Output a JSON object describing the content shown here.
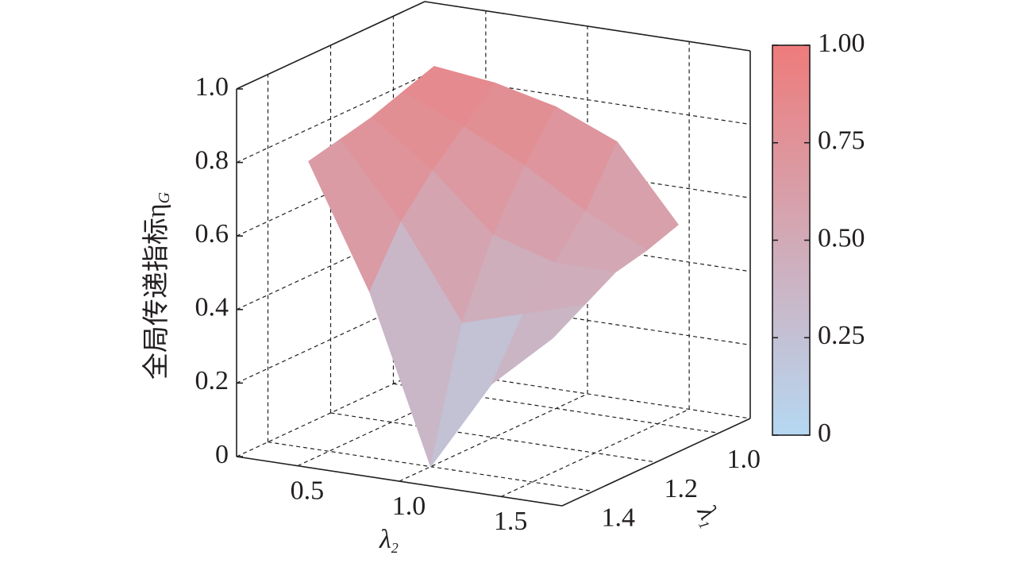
{
  "chart_data": {
    "type": "surface",
    "zlabel": {
      "text": "全局传递指标η",
      "sub": "G"
    },
    "xlabel": {
      "text": "λ",
      "sub": "2"
    },
    "ylabel": {
      "text": "λ",
      "sub": "1"
    },
    "x": [
      0.4,
      0.7,
      1.0,
      1.3,
      1.6
    ],
    "y": [
      1.0,
      1.1,
      1.2,
      1.3,
      1.4
    ],
    "z": [
      [
        0.88,
        0.86,
        0.82,
        0.75,
        0.55
      ],
      [
        0.85,
        0.78,
        0.7,
        0.6,
        0.52
      ],
      [
        0.82,
        0.7,
        0.55,
        0.5,
        0.5
      ],
      [
        0.8,
        0.6,
        0.35,
        0.4,
        0.45
      ],
      [
        0.78,
        0.45,
        0.0,
        0.25,
        0.4
      ]
    ],
    "xlim": [
      0.2,
      1.8
    ],
    "xticks": [
      0.5,
      {
        "value": 1,
        "label": "1.0"
      },
      1.5
    ],
    "ylim": [
      0.9,
      1.5
    ],
    "yticks": [
      {
        "value": 1,
        "label": "1.0"
      },
      1.2,
      1.4
    ],
    "zlim": [
      0,
      1
    ],
    "zticks": [
      0,
      0.2,
      0.4,
      0.6,
      0.8,
      {
        "value": 1,
        "label": "1.0"
      }
    ],
    "colormap": [
      "#b5d8f2",
      "#ee7b7b"
    ],
    "colorbar": {
      "lim": [
        0,
        1
      ],
      "ticks": [
        0,
        0.25,
        {
          "value": 0.5,
          "label": "0.50"
        },
        0.75,
        {
          "value": 1,
          "label": "1.00"
        }
      ]
    },
    "grid": true
  }
}
